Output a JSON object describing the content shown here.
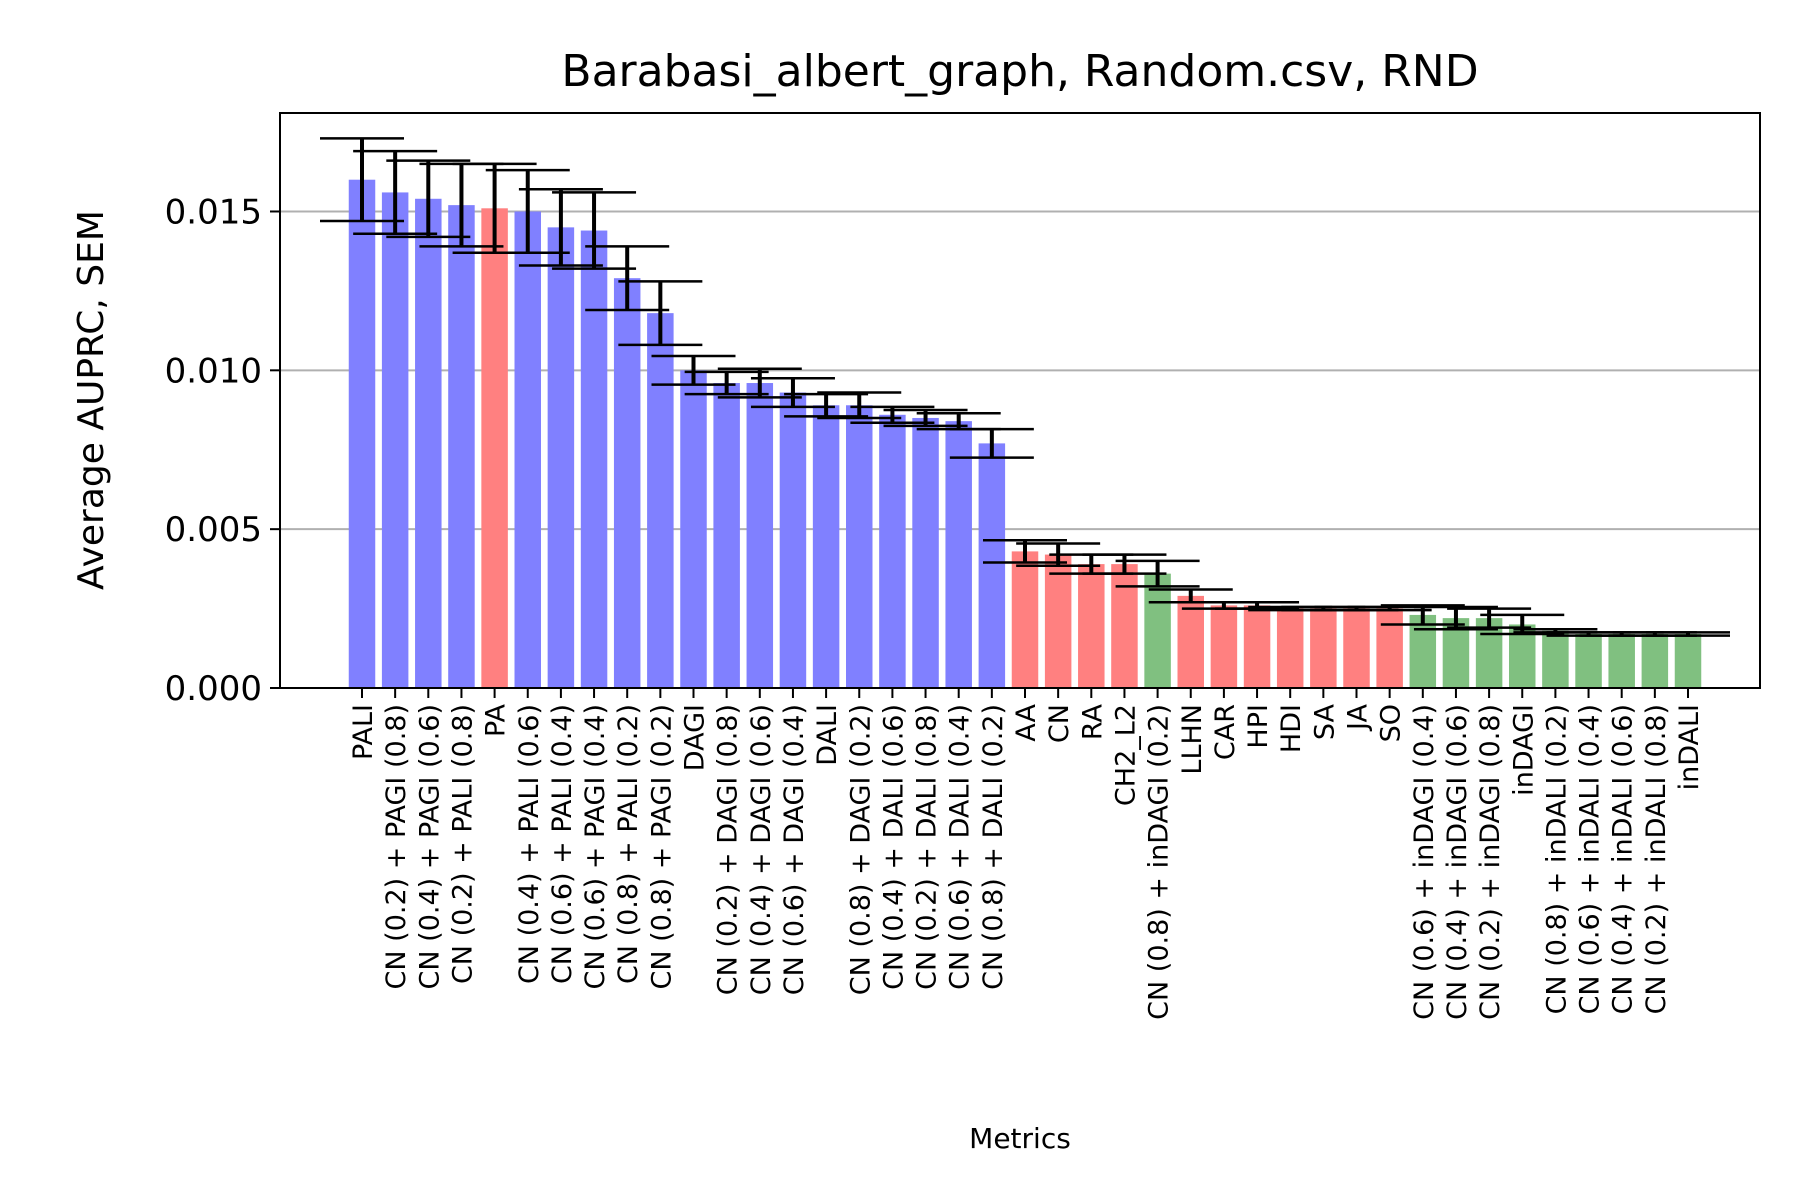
{
  "chart_data": {
    "type": "bar",
    "title": "Barabasi_albert_graph, Random.csv, RND",
    "xlabel": "Metrics",
    "ylabel": "Average AUPRC, SEM",
    "ylim": [
      0,
      0.0181
    ],
    "yticks": [
      0.0,
      0.005,
      0.01,
      0.015
    ],
    "ytick_labels": [
      "0.000",
      "0.005",
      "0.010",
      "0.015"
    ],
    "grid": "horizontal at y ticks",
    "colors": {
      "blue": "#8080ff",
      "red": "#ff8080",
      "green": "#80c080",
      "error": "#000000",
      "grid": "#b0b0b0"
    },
    "categories": [
      "PALI",
      "CN (0.2) + PAGI (0.8)",
      "CN (0.4) + PAGI (0.6)",
      "CN (0.2) + PALI (0.8)",
      "PA",
      "CN (0.4) + PALI (0.6)",
      "CN (0.6) + PALI (0.4)",
      "CN (0.6) + PAGI (0.4)",
      "CN (0.8) + PALI (0.2)",
      "CN (0.8) + PAGI (0.2)",
      "DAGI",
      "CN (0.2) + DAGI (0.8)",
      "CN (0.4) + DAGI (0.6)",
      "CN (0.6) + DAGI (0.4)",
      "DALI",
      "CN (0.8) + DAGI (0.2)",
      "CN (0.4) + DALI (0.6)",
      "CN (0.2) + DALI (0.8)",
      "CN (0.6) + DALI (0.4)",
      "CN (0.8) + DALI (0.2)",
      "AA",
      "CN",
      "RA",
      "CH2_L2",
      "CN (0.8) + inDAGI (0.2)",
      "LLHN",
      "CAR",
      "HPI",
      "HDI",
      "SA",
      "JA",
      "SO",
      "CN (0.6) + inDAGI (0.4)",
      "CN (0.4) + inDAGI (0.6)",
      "CN (0.2) + inDAGI (0.8)",
      "inDAGI",
      "CN (0.8) + inDALI (0.2)",
      "CN (0.6) + inDALI (0.4)",
      "CN (0.4) + inDALI (0.6)",
      "CN (0.2) + inDALI (0.8)",
      "inDALI"
    ],
    "values": [
      0.016,
      0.0156,
      0.0154,
      0.0152,
      0.0151,
      0.015,
      0.0145,
      0.0144,
      0.0129,
      0.0118,
      0.01,
      0.0096,
      0.0096,
      0.0093,
      0.0089,
      0.0089,
      0.0086,
      0.0085,
      0.0084,
      0.0077,
      0.0043,
      0.0042,
      0.0039,
      0.0039,
      0.0036,
      0.0029,
      0.0026,
      0.0026,
      0.0025,
      0.0025,
      0.0025,
      0.0025,
      0.0023,
      0.0022,
      0.0022,
      0.002,
      0.0018,
      0.0017,
      0.0017,
      0.0017,
      0.0017
    ],
    "errors": [
      0.0013,
      0.0013,
      0.0012,
      0.0013,
      0.0014,
      0.0013,
      0.0012,
      0.0012,
      0.001,
      0.001,
      0.00045,
      0.00035,
      0.00045,
      0.00045,
      0.00035,
      0.0004,
      0.00025,
      0.00025,
      0.00025,
      0.00045,
      0.00035,
      0.00035,
      0.0003,
      0.0003,
      0.0004,
      0.0002,
      0.0001,
      0.0001,
      5e-05,
      5e-05,
      5e-05,
      5e-05,
      0.0003,
      0.00035,
      0.0003,
      0.0003,
      5e-05,
      5e-05,
      5e-05,
      5e-05,
      5e-05
    ],
    "bar_colors": [
      "blue",
      "blue",
      "blue",
      "blue",
      "red",
      "blue",
      "blue",
      "blue",
      "blue",
      "blue",
      "blue",
      "blue",
      "blue",
      "blue",
      "blue",
      "blue",
      "blue",
      "blue",
      "blue",
      "blue",
      "red",
      "red",
      "red",
      "red",
      "green",
      "red",
      "red",
      "red",
      "red",
      "red",
      "red",
      "red",
      "green",
      "green",
      "green",
      "green",
      "green",
      "green",
      "green",
      "green",
      "green"
    ]
  }
}
